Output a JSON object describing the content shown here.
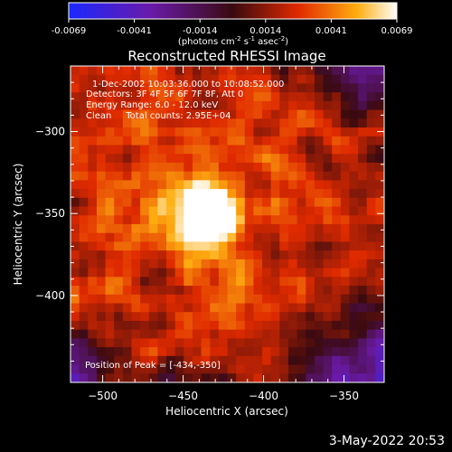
{
  "chart_data": {
    "type": "heatmap",
    "title": "Reconstructed RHESSI Image",
    "xlabel": "Heliocentric X (arcsec)",
    "ylabel": "Heliocentric Y (arcsec)",
    "xlim": [
      -520,
      -325
    ],
    "ylim": [
      -453,
      -260
    ],
    "xticks": [
      -500,
      -450,
      -400,
      -350
    ],
    "yticks": [
      -300,
      -350,
      -400
    ],
    "colorbar": {
      "range": [
        -0.0069,
        0.0069
      ],
      "ticks": [
        "-0.0069",
        "-0.0041",
        "-0.0014",
        "0.0014",
        "0.0041",
        "0.0069"
      ],
      "label": "(photons cm",
      "label_exp1": "-2",
      "label_mid": " s",
      "label_exp2": "-1",
      "label_mid2": " asec",
      "label_exp3": "-2",
      "label_end": ")"
    },
    "annotations": [
      "1-Dec-2002 10:03:36.000 to 10:08:52.000",
      "Detectors: 3F 4F 5F 6F 7F 8F, Att 0",
      "Energy Range: 6.0 - 12.0 keV",
      "Clean     Total counts: 2.95E+04"
    ],
    "peak_text": "Position of Peak = [-434,-350]",
    "peak": [
      -434,
      -350
    ],
    "peak_value": 0.0069
  },
  "timestamp": "3-May-2022 20:53"
}
